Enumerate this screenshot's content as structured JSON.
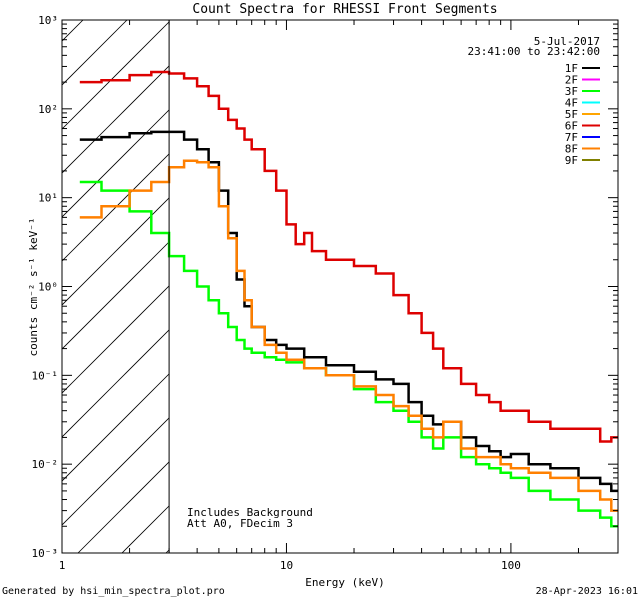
{
  "chart_data": {
    "type": "line",
    "title": "Count Spectra for RHESSI Front Segments",
    "xlabel": "Energy (keV)",
    "ylabel": "counts cm⁻² s⁻¹ keV⁻¹",
    "xscale": "log",
    "yscale": "log",
    "xlim": [
      1,
      300
    ],
    "ylim": [
      0.001,
      1000
    ],
    "x_ticks": [
      "1",
      "10",
      "100"
    ],
    "y_ticks": [
      "10⁻³",
      "10⁻²",
      "10⁻¹",
      "10⁰",
      "10¹",
      "10²",
      "10³"
    ],
    "date": "5-Jul-2017",
    "time_range": "23:41:00 to 23:42:00",
    "hatched_region_xlim": [
      1,
      3
    ],
    "legend_position": "top-right",
    "annotations": [
      "Includes Background",
      "Att A0, FDecim 3"
    ],
    "series": [
      {
        "name": "1F",
        "color": "#000000",
        "x": [
          1.2,
          1.5,
          2,
          2.5,
          3,
          3.5,
          4,
          4.5,
          5,
          5.5,
          6,
          6.5,
          7,
          8,
          9,
          10,
          12,
          15,
          20,
          25,
          30,
          35,
          40,
          45,
          50,
          60,
          70,
          80,
          90,
          100,
          120,
          150,
          200,
          250,
          280
        ],
        "y": [
          45,
          48,
          53,
          55,
          55,
          45,
          35,
          25,
          12,
          4,
          1.2,
          0.6,
          0.35,
          0.25,
          0.22,
          0.2,
          0.16,
          0.13,
          0.11,
          0.09,
          0.08,
          0.05,
          0.035,
          0.028,
          0.03,
          0.02,
          0.016,
          0.014,
          0.012,
          0.013,
          0.01,
          0.009,
          0.007,
          0.006,
          0.005
        ]
      },
      {
        "name": "2F",
        "color": "#ff00ff",
        "x": [],
        "y": []
      },
      {
        "name": "3F",
        "color": "#00ff00",
        "x": [
          1.2,
          1.5,
          2,
          2.5,
          3,
          3.5,
          4,
          4.5,
          5,
          5.5,
          6,
          6.5,
          7,
          8,
          9,
          10,
          12,
          15,
          20,
          25,
          30,
          35,
          40,
          45,
          50,
          60,
          70,
          80,
          90,
          100,
          120,
          150,
          200,
          250,
          280
        ],
        "y": [
          15,
          12,
          7,
          4,
          2.2,
          1.5,
          1,
          0.7,
          0.5,
          0.35,
          0.25,
          0.2,
          0.18,
          0.16,
          0.15,
          0.14,
          0.12,
          0.1,
          0.07,
          0.05,
          0.04,
          0.03,
          0.02,
          0.015,
          0.02,
          0.012,
          0.01,
          0.009,
          0.008,
          0.007,
          0.005,
          0.004,
          0.003,
          0.0025,
          0.002
        ]
      },
      {
        "name": "4F",
        "color": "#00ffff",
        "x": [],
        "y": []
      },
      {
        "name": "5F",
        "color": "#ffa500",
        "x": [],
        "y": []
      },
      {
        "name": "6F",
        "color": "#dd0000",
        "x": [
          1.2,
          1.5,
          2,
          2.5,
          3,
          3.5,
          4,
          4.5,
          5,
          5.5,
          6,
          6.5,
          7,
          8,
          9,
          10,
          11,
          12,
          13,
          15,
          20,
          25,
          30,
          35,
          40,
          45,
          50,
          60,
          70,
          80,
          90,
          100,
          120,
          150,
          200,
          250,
          280
        ],
        "y": [
          200,
          210,
          240,
          260,
          250,
          220,
          180,
          140,
          100,
          75,
          60,
          45,
          35,
          20,
          12,
          5,
          3,
          4,
          2.5,
          2,
          1.7,
          1.4,
          0.8,
          0.5,
          0.3,
          0.2,
          0.12,
          0.08,
          0.06,
          0.05,
          0.04,
          0.04,
          0.03,
          0.025,
          0.025,
          0.018,
          0.02
        ]
      },
      {
        "name": "7F",
        "color": "#0000ff",
        "x": [],
        "y": []
      },
      {
        "name": "8F",
        "color": "#ff8000",
        "x": [
          1.2,
          1.5,
          2,
          2.5,
          3,
          3.5,
          4,
          4.5,
          5,
          5.5,
          6,
          6.5,
          7,
          8,
          9,
          10,
          12,
          15,
          20,
          25,
          30,
          35,
          40,
          45,
          50,
          60,
          70,
          80,
          90,
          100,
          120,
          150,
          200,
          250,
          280
        ],
        "y": [
          6,
          8,
          12,
          15,
          22,
          26,
          25,
          22,
          8,
          3.5,
          1.5,
          0.7,
          0.35,
          0.22,
          0.18,
          0.15,
          0.12,
          0.1,
          0.075,
          0.06,
          0.045,
          0.035,
          0.025,
          0.02,
          0.03,
          0.015,
          0.012,
          0.012,
          0.01,
          0.009,
          0.008,
          0.007,
          0.005,
          0.004,
          0.003
        ]
      },
      {
        "name": "9F",
        "color": "#808000",
        "x": [],
        "y": []
      }
    ]
  },
  "footer": {
    "left": "Generated by hsi_min_spectra_plot.pro",
    "right": "28-Apr-2023 16:01"
  }
}
